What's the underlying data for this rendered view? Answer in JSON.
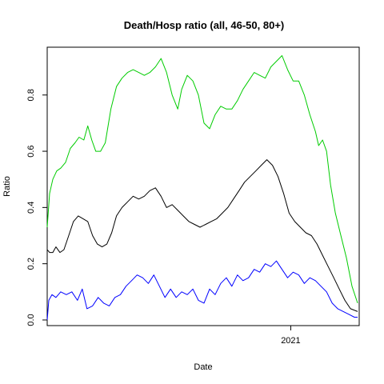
{
  "chart_data": {
    "type": "line",
    "title": "Death/Hosp ratio (all, 46-50, 80+)",
    "xlabel": "Date",
    "ylabel": "Ratio",
    "x_range": [
      "2020-03-01",
      "2021-03-28"
    ],
    "ylim": [
      -0.02,
      0.97
    ],
    "x_ticks": [
      {
        "date": "2021-01-01",
        "label": "2021"
      }
    ],
    "y_ticks": [
      0.0,
      0.2,
      0.4,
      0.6,
      0.8
    ],
    "y_tick_labels": [
      "0.0",
      "0.2",
      "0.4",
      "0.6",
      "0.8"
    ],
    "grid": false,
    "legend": "none",
    "series": [
      {
        "color": "#00cc00",
        "x": [
          "2020-03-01",
          "2020-03-04",
          "2020-03-08",
          "2020-03-13",
          "2020-03-18",
          "2020-03-24",
          "2020-03-30",
          "2020-04-05",
          "2020-04-10",
          "2020-04-16",
          "2020-04-21",
          "2020-04-26",
          "2020-05-01",
          "2020-05-07",
          "2020-05-13",
          "2020-05-20",
          "2020-05-27",
          "2020-06-03",
          "2020-06-10",
          "2020-06-17",
          "2020-06-24",
          "2020-07-01",
          "2020-07-08",
          "2020-07-15",
          "2020-07-22",
          "2020-07-29",
          "2020-08-05",
          "2020-08-12",
          "2020-08-17",
          "2020-08-24",
          "2020-08-31",
          "2020-09-07",
          "2020-09-14",
          "2020-09-21",
          "2020-09-28",
          "2020-10-05",
          "2020-10-12",
          "2020-10-19",
          "2020-10-26",
          "2020-11-02",
          "2020-11-09",
          "2020-11-16",
          "2020-11-23",
          "2020-11-30",
          "2020-12-07",
          "2020-12-14",
          "2020-12-21",
          "2020-12-28",
          "2021-01-04",
          "2021-01-11",
          "2021-01-18",
          "2021-01-25",
          "2021-02-01",
          "2021-02-05",
          "2021-02-10",
          "2021-02-15",
          "2021-02-20",
          "2021-02-26",
          "2021-03-05",
          "2021-03-12",
          "2021-03-19",
          "2021-03-26"
        ],
        "values": [
          0.33,
          0.45,
          0.5,
          0.53,
          0.54,
          0.56,
          0.61,
          0.63,
          0.65,
          0.64,
          0.69,
          0.64,
          0.6,
          0.6,
          0.63,
          0.75,
          0.83,
          0.86,
          0.88,
          0.89,
          0.88,
          0.87,
          0.88,
          0.9,
          0.93,
          0.88,
          0.8,
          0.75,
          0.82,
          0.87,
          0.85,
          0.8,
          0.7,
          0.68,
          0.73,
          0.76,
          0.75,
          0.75,
          0.78,
          0.82,
          0.85,
          0.88,
          0.87,
          0.86,
          0.9,
          0.92,
          0.94,
          0.89,
          0.85,
          0.85,
          0.8,
          0.73,
          0.67,
          0.62,
          0.64,
          0.6,
          0.48,
          0.38,
          0.3,
          0.22,
          0.12,
          0.06
        ]
      },
      {
        "color": "#000000",
        "x": [
          "2020-03-01",
          "2020-03-04",
          "2020-03-08",
          "2020-03-12",
          "2020-03-17",
          "2020-03-22",
          "2020-03-28",
          "2020-04-03",
          "2020-04-09",
          "2020-04-15",
          "2020-04-21",
          "2020-04-27",
          "2020-05-03",
          "2020-05-09",
          "2020-05-15",
          "2020-05-21",
          "2020-05-27",
          "2020-06-03",
          "2020-06-10",
          "2020-06-17",
          "2020-06-24",
          "2020-07-01",
          "2020-07-08",
          "2020-07-15",
          "2020-07-22",
          "2020-07-29",
          "2020-08-05",
          "2020-08-12",
          "2020-08-19",
          "2020-08-26",
          "2020-09-02",
          "2020-09-09",
          "2020-09-16",
          "2020-09-23",
          "2020-09-30",
          "2020-10-07",
          "2020-10-14",
          "2020-10-21",
          "2020-10-28",
          "2020-11-04",
          "2020-11-11",
          "2020-11-18",
          "2020-11-25",
          "2020-12-02",
          "2020-12-09",
          "2020-12-16",
          "2020-12-23",
          "2020-12-30",
          "2021-01-06",
          "2021-01-13",
          "2021-01-20",
          "2021-01-27",
          "2021-02-03",
          "2021-02-10",
          "2021-02-17",
          "2021-02-24",
          "2021-03-03",
          "2021-03-10",
          "2021-03-17",
          "2021-03-26"
        ],
        "values": [
          0.25,
          0.24,
          0.24,
          0.26,
          0.24,
          0.25,
          0.3,
          0.35,
          0.37,
          0.36,
          0.35,
          0.3,
          0.27,
          0.26,
          0.27,
          0.31,
          0.37,
          0.4,
          0.42,
          0.44,
          0.43,
          0.44,
          0.46,
          0.47,
          0.44,
          0.4,
          0.41,
          0.39,
          0.37,
          0.35,
          0.34,
          0.33,
          0.34,
          0.35,
          0.36,
          0.38,
          0.4,
          0.43,
          0.46,
          0.49,
          0.51,
          0.53,
          0.55,
          0.57,
          0.55,
          0.51,
          0.45,
          0.38,
          0.35,
          0.33,
          0.31,
          0.3,
          0.27,
          0.23,
          0.19,
          0.15,
          0.11,
          0.07,
          0.04,
          0.03
        ]
      },
      {
        "color": "#0000ff",
        "x": [
          "2020-03-01",
          "2020-03-03",
          "2020-03-07",
          "2020-03-12",
          "2020-03-18",
          "2020-03-25",
          "2020-04-01",
          "2020-04-08",
          "2020-04-14",
          "2020-04-20",
          "2020-04-27",
          "2020-05-04",
          "2020-05-11",
          "2020-05-18",
          "2020-05-25",
          "2020-06-01",
          "2020-06-08",
          "2020-06-15",
          "2020-06-22",
          "2020-06-29",
          "2020-07-06",
          "2020-07-13",
          "2020-07-20",
          "2020-07-27",
          "2020-08-03",
          "2020-08-10",
          "2020-08-17",
          "2020-08-24",
          "2020-08-31",
          "2020-09-07",
          "2020-09-14",
          "2020-09-21",
          "2020-09-28",
          "2020-10-05",
          "2020-10-12",
          "2020-10-19",
          "2020-10-26",
          "2020-11-02",
          "2020-11-09",
          "2020-11-16",
          "2020-11-23",
          "2020-11-30",
          "2020-12-07",
          "2020-12-14",
          "2020-12-21",
          "2020-12-28",
          "2021-01-04",
          "2021-01-11",
          "2021-01-18",
          "2021-01-25",
          "2021-02-01",
          "2021-02-08",
          "2021-02-15",
          "2021-02-22",
          "2021-03-01",
          "2021-03-08",
          "2021-03-15",
          "2021-03-22",
          "2021-03-26"
        ],
        "values": [
          0.0,
          0.07,
          0.09,
          0.08,
          0.1,
          0.09,
          0.1,
          0.07,
          0.11,
          0.04,
          0.05,
          0.08,
          0.06,
          0.05,
          0.08,
          0.09,
          0.12,
          0.14,
          0.16,
          0.15,
          0.13,
          0.16,
          0.12,
          0.08,
          0.11,
          0.08,
          0.1,
          0.09,
          0.11,
          0.07,
          0.06,
          0.11,
          0.09,
          0.13,
          0.15,
          0.12,
          0.16,
          0.14,
          0.15,
          0.18,
          0.17,
          0.2,
          0.19,
          0.21,
          0.18,
          0.15,
          0.17,
          0.16,
          0.13,
          0.15,
          0.14,
          0.12,
          0.1,
          0.06,
          0.04,
          0.03,
          0.02,
          0.01,
          0.01
        ]
      }
    ]
  }
}
